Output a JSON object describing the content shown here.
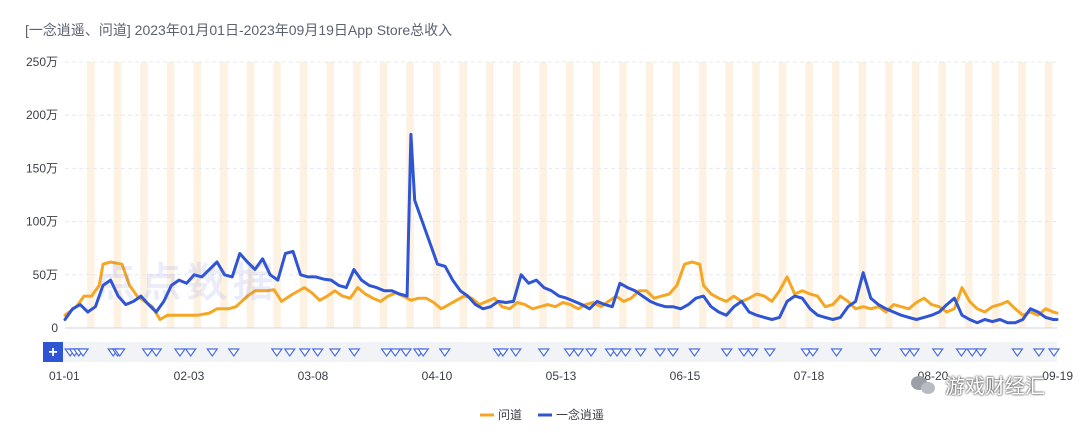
{
  "title": "[一念逍遥、问道]  2023年01月01日-2023年09月19日App Store总收入",
  "watermark": {
    "logo_text": "点点数据",
    "account_name": "游戏财经汇"
  },
  "chart_data": {
    "type": "line",
    "title": "[一念逍遥、问道]  2023年01月01日-2023年09月19日App Store总收入",
    "x_tick_labels": [
      "01-01",
      "02-03",
      "03-08",
      "04-10",
      "05-13",
      "06-15",
      "07-18",
      "08-20",
      "09-19"
    ],
    "y_tick_labels": [
      "0",
      "50万",
      "100万",
      "150万",
      "200万",
      "250万"
    ],
    "ylim": [
      0,
      250
    ],
    "y_unit": "万",
    "x_day_range": [
      0,
      261
    ],
    "grid": "horizontal",
    "legend_position": "bottom-center",
    "series": [
      {
        "name": "问道",
        "color": "#f5a623",
        "points": [
          [
            0,
            12
          ],
          [
            3,
            20
          ],
          [
            5,
            30
          ],
          [
            7,
            30
          ],
          [
            9,
            40
          ],
          [
            10,
            60
          ],
          [
            12,
            62
          ],
          [
            15,
            60
          ],
          [
            17,
            40
          ],
          [
            19,
            30
          ],
          [
            21,
            25
          ],
          [
            23,
            20
          ],
          [
            25,
            8
          ],
          [
            27,
            12
          ],
          [
            30,
            12
          ],
          [
            35,
            12
          ],
          [
            38,
            14
          ],
          [
            40,
            18
          ],
          [
            43,
            18
          ],
          [
            45,
            20
          ],
          [
            48,
            30
          ],
          [
            50,
            35
          ],
          [
            53,
            35
          ],
          [
            55,
            36
          ],
          [
            57,
            25
          ],
          [
            60,
            32
          ],
          [
            63,
            38
          ],
          [
            65,
            33
          ],
          [
            67,
            26
          ],
          [
            69,
            30
          ],
          [
            71,
            35
          ],
          [
            73,
            30
          ],
          [
            75,
            28
          ],
          [
            77,
            38
          ],
          [
            79,
            32
          ],
          [
            81,
            28
          ],
          [
            83,
            25
          ],
          [
            85,
            30
          ],
          [
            87,
            33
          ],
          [
            89,
            30
          ],
          [
            91,
            26
          ],
          [
            93,
            28
          ],
          [
            95,
            28
          ],
          [
            97,
            24
          ],
          [
            99,
            18
          ],
          [
            101,
            22
          ],
          [
            103,
            26
          ],
          [
            105,
            30
          ],
          [
            107,
            28
          ],
          [
            109,
            22
          ],
          [
            111,
            25
          ],
          [
            113,
            28
          ],
          [
            115,
            20
          ],
          [
            117,
            18
          ],
          [
            119,
            24
          ],
          [
            121,
            22
          ],
          [
            123,
            18
          ],
          [
            125,
            20
          ],
          [
            127,
            22
          ],
          [
            129,
            20
          ],
          [
            131,
            24
          ],
          [
            133,
            22
          ],
          [
            135,
            18
          ],
          [
            137,
            22
          ],
          [
            139,
            24
          ],
          [
            141,
            20
          ],
          [
            143,
            25
          ],
          [
            145,
            30
          ],
          [
            147,
            25
          ],
          [
            149,
            28
          ],
          [
            151,
            35
          ],
          [
            153,
            35
          ],
          [
            155,
            28
          ],
          [
            157,
            30
          ],
          [
            159,
            32
          ],
          [
            161,
            40
          ],
          [
            163,
            60
          ],
          [
            165,
            62
          ],
          [
            167,
            60
          ],
          [
            168,
            40
          ],
          [
            170,
            32
          ],
          [
            172,
            28
          ],
          [
            174,
            25
          ],
          [
            176,
            30
          ],
          [
            178,
            25
          ],
          [
            180,
            28
          ],
          [
            182,
            32
          ],
          [
            184,
            30
          ],
          [
            186,
            25
          ],
          [
            188,
            35
          ],
          [
            190,
            48
          ],
          [
            192,
            32
          ],
          [
            194,
            35
          ],
          [
            196,
            32
          ],
          [
            198,
            30
          ],
          [
            200,
            20
          ],
          [
            202,
            22
          ],
          [
            204,
            30
          ],
          [
            206,
            25
          ],
          [
            208,
            18
          ],
          [
            210,
            20
          ],
          [
            212,
            18
          ],
          [
            214,
            20
          ],
          [
            216,
            15
          ],
          [
            218,
            22
          ],
          [
            220,
            20
          ],
          [
            222,
            18
          ],
          [
            224,
            24
          ],
          [
            226,
            28
          ],
          [
            228,
            22
          ],
          [
            230,
            20
          ],
          [
            232,
            15
          ],
          [
            234,
            18
          ],
          [
            236,
            38
          ],
          [
            238,
            25
          ],
          [
            240,
            18
          ],
          [
            242,
            15
          ],
          [
            244,
            20
          ],
          [
            246,
            22
          ],
          [
            248,
            25
          ],
          [
            250,
            18
          ],
          [
            252,
            12
          ],
          [
            254,
            15
          ],
          [
            256,
            12
          ],
          [
            258,
            18
          ],
          [
            260,
            15
          ],
          [
            261,
            14
          ]
        ]
      },
      {
        "name": "一念逍遥",
        "color": "#2f55d4",
        "points": [
          [
            0,
            8
          ],
          [
            2,
            18
          ],
          [
            4,
            22
          ],
          [
            6,
            15
          ],
          [
            8,
            20
          ],
          [
            10,
            40
          ],
          [
            12,
            45
          ],
          [
            14,
            30
          ],
          [
            16,
            22
          ],
          [
            18,
            25
          ],
          [
            20,
            30
          ],
          [
            22,
            22
          ],
          [
            24,
            15
          ],
          [
            26,
            25
          ],
          [
            28,
            40
          ],
          [
            30,
            45
          ],
          [
            32,
            42
          ],
          [
            34,
            50
          ],
          [
            36,
            48
          ],
          [
            38,
            55
          ],
          [
            40,
            62
          ],
          [
            42,
            50
          ],
          [
            44,
            48
          ],
          [
            46,
            70
          ],
          [
            48,
            62
          ],
          [
            50,
            55
          ],
          [
            52,
            65
          ],
          [
            54,
            50
          ],
          [
            56,
            45
          ],
          [
            58,
            70
          ],
          [
            60,
            72
          ],
          [
            62,
            50
          ],
          [
            64,
            48
          ],
          [
            66,
            48
          ],
          [
            68,
            46
          ],
          [
            70,
            45
          ],
          [
            72,
            40
          ],
          [
            74,
            38
          ],
          [
            76,
            55
          ],
          [
            78,
            45
          ],
          [
            80,
            40
          ],
          [
            82,
            38
          ],
          [
            84,
            35
          ],
          [
            86,
            35
          ],
          [
            88,
            32
          ],
          [
            90,
            30
          ],
          [
            91,
            182
          ],
          [
            92,
            120
          ],
          [
            94,
            100
          ],
          [
            96,
            80
          ],
          [
            98,
            60
          ],
          [
            100,
            58
          ],
          [
            102,
            45
          ],
          [
            104,
            35
          ],
          [
            106,
            30
          ],
          [
            108,
            22
          ],
          [
            110,
            18
          ],
          [
            112,
            20
          ],
          [
            114,
            25
          ],
          [
            116,
            24
          ],
          [
            118,
            25
          ],
          [
            120,
            50
          ],
          [
            122,
            42
          ],
          [
            124,
            45
          ],
          [
            126,
            38
          ],
          [
            128,
            35
          ],
          [
            130,
            30
          ],
          [
            132,
            28
          ],
          [
            134,
            25
          ],
          [
            136,
            22
          ],
          [
            138,
            18
          ],
          [
            140,
            25
          ],
          [
            142,
            22
          ],
          [
            144,
            20
          ],
          [
            146,
            42
          ],
          [
            148,
            38
          ],
          [
            150,
            35
          ],
          [
            152,
            30
          ],
          [
            154,
            25
          ],
          [
            156,
            22
          ],
          [
            158,
            20
          ],
          [
            160,
            20
          ],
          [
            162,
            18
          ],
          [
            164,
            22
          ],
          [
            166,
            28
          ],
          [
            168,
            30
          ],
          [
            170,
            20
          ],
          [
            172,
            15
          ],
          [
            174,
            12
          ],
          [
            176,
            20
          ],
          [
            178,
            25
          ],
          [
            180,
            15
          ],
          [
            182,
            12
          ],
          [
            184,
            10
          ],
          [
            186,
            8
          ],
          [
            188,
            10
          ],
          [
            190,
            25
          ],
          [
            192,
            30
          ],
          [
            194,
            28
          ],
          [
            196,
            18
          ],
          [
            198,
            12
          ],
          [
            200,
            10
          ],
          [
            202,
            8
          ],
          [
            204,
            10
          ],
          [
            206,
            20
          ],
          [
            208,
            25
          ],
          [
            210,
            52
          ],
          [
            212,
            28
          ],
          [
            214,
            22
          ],
          [
            216,
            18
          ],
          [
            218,
            15
          ],
          [
            220,
            12
          ],
          [
            222,
            10
          ],
          [
            224,
            8
          ],
          [
            226,
            10
          ],
          [
            228,
            12
          ],
          [
            230,
            15
          ],
          [
            232,
            22
          ],
          [
            234,
            28
          ],
          [
            236,
            12
          ],
          [
            238,
            8
          ],
          [
            240,
            5
          ],
          [
            242,
            8
          ],
          [
            244,
            6
          ],
          [
            246,
            8
          ],
          [
            248,
            5
          ],
          [
            250,
            5
          ],
          [
            252,
            8
          ],
          [
            254,
            18
          ],
          [
            256,
            15
          ],
          [
            258,
            10
          ],
          [
            260,
            8
          ],
          [
            261,
            8
          ]
        ]
      }
    ]
  },
  "event_strip": {
    "plus_label": "+",
    "marker_days": [
      1,
      3,
      5,
      7,
      21,
      23,
      24,
      37,
      41,
      52,
      57,
      67,
      77,
      97,
      103,
      110,
      116,
      124,
      133,
      148,
      152,
      157,
      163,
      165,
      175,
      200,
      202,
      208,
      221,
      233,
      237,
      243,
      252,
      255,
      259,
      266,
      275,
      281,
      291,
      306,
      314,
      318,
      326,
      343,
      346,
      357,
      375,
      389,
      393,
      404,
      415,
      420,
      424,
      441,
      451,
      458
    ]
  }
}
